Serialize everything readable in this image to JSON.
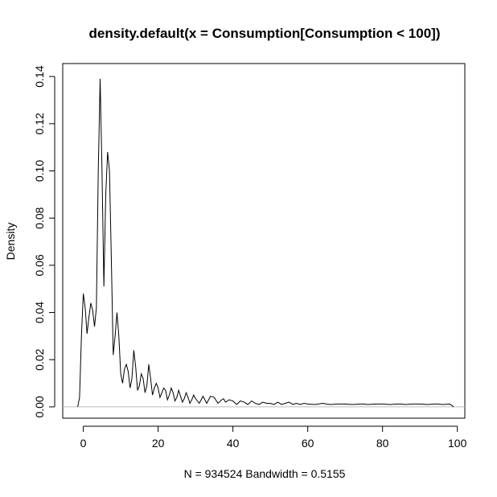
{
  "chart_data": {
    "type": "line",
    "title": "density.default(x = Consumption[Consumption < 100])",
    "xlabel": "N = 934524   Bandwidth = 0.5155",
    "ylabel": "Density",
    "xlim": [
      -5.5,
      102
    ],
    "ylim": [
      -0.0048,
      0.1455
    ],
    "x_ticks": [
      "0",
      "20",
      "40",
      "60",
      "80",
      "100"
    ],
    "y_ticks": [
      "0.00",
      "0.02",
      "0.04",
      "0.06",
      "0.08",
      "0.10",
      "0.12",
      "0.14"
    ],
    "baseline_color": "#bebebe",
    "grid": false,
    "series": [
      {
        "x": [
          -1.5,
          -1,
          -0.5,
          0,
          0.5,
          1,
          1.5,
          2,
          2.5,
          3,
          3.5,
          4,
          4.5,
          5,
          5.5,
          6,
          6.5,
          7,
          7.5,
          8,
          8.5,
          9,
          9.5,
          10,
          10.5,
          11,
          11.5,
          12,
          12.5,
          13,
          13.5,
          14,
          14.5,
          15,
          15.5,
          16,
          16.5,
          17,
          17.5,
          18,
          18.5,
          19,
          19.5,
          20,
          20.5,
          21,
          21.5,
          22,
          22.5,
          23,
          23.5,
          24,
          24.5,
          25,
          25.5,
          26,
          26.5,
          27,
          27.5,
          28,
          28.5,
          29,
          29.5,
          30,
          31,
          32,
          32.5,
          33,
          34,
          35,
          36,
          37,
          37.5,
          38,
          39,
          40,
          41,
          42,
          43,
          44,
          45,
          46,
          47,
          48,
          49,
          50,
          51,
          52,
          53,
          54,
          55,
          56,
          57,
          58,
          59,
          60,
          62,
          64,
          65,
          66,
          68,
          70,
          72,
          74,
          75,
          76,
          78,
          80,
          82,
          84,
          85,
          86,
          88,
          90,
          92,
          94,
          95,
          96,
          98,
          99
        ],
        "y": [
          0,
          0.004,
          0.03,
          0.048,
          0.042,
          0.031,
          0.038,
          0.044,
          0.041,
          0.034,
          0.042,
          0.1,
          0.139,
          0.1,
          0.051,
          0.09,
          0.108,
          0.1,
          0.062,
          0.022,
          0.03,
          0.04,
          0.03,
          0.014,
          0.01,
          0.016,
          0.018,
          0.015,
          0.008,
          0.012,
          0.024,
          0.017,
          0.007,
          0.009,
          0.014,
          0.012,
          0.006,
          0.009,
          0.018,
          0.012,
          0.005,
          0.008,
          0.01,
          0.008,
          0.004,
          0.006,
          0.008,
          0.007,
          0.003,
          0.005,
          0.008,
          0.006,
          0.0025,
          0.004,
          0.007,
          0.0045,
          0.002,
          0.0035,
          0.006,
          0.004,
          0.0015,
          0.003,
          0.005,
          0.0035,
          0.0015,
          0.0045,
          0.003,
          0.0015,
          0.0045,
          0.004,
          0.0015,
          0.003,
          0.0035,
          0.002,
          0.003,
          0.0025,
          0.001,
          0.0025,
          0.002,
          0.001,
          0.0025,
          0.0015,
          0.001,
          0.002,
          0.0015,
          0.0015,
          0.001,
          0.002,
          0.001,
          0.0015,
          0.002,
          0.001,
          0.0015,
          0.001,
          0.0015,
          0.0012,
          0.001,
          0.0015,
          0.0012,
          0.001,
          0.0012,
          0.0012,
          0.001,
          0.0012,
          0.0012,
          0.001,
          0.0012,
          0.0012,
          0.001,
          0.0012,
          0.0012,
          0.001,
          0.0012,
          0.0012,
          0.001,
          0.0012,
          0.0012,
          0.001,
          0.0012,
          0
        ]
      }
    ]
  }
}
